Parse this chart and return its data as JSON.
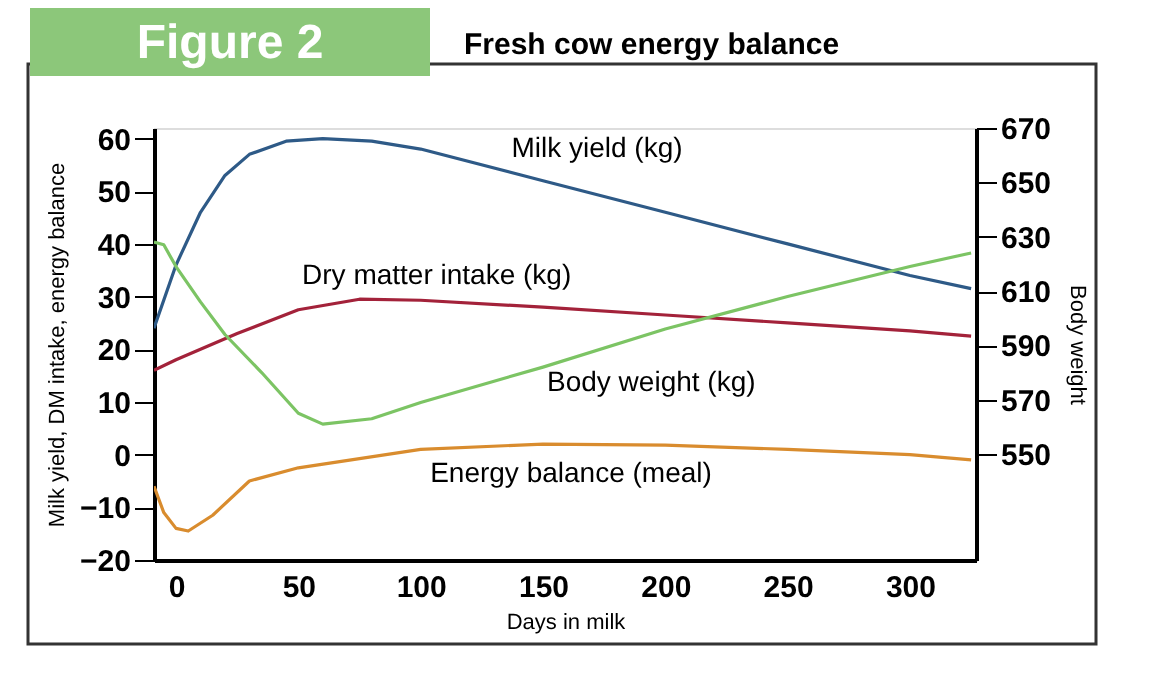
{
  "chart_data": {
    "type": "line",
    "title": "Figure 2",
    "subtitle": "Fresh cow energy balance",
    "xlabel": "Days in milk",
    "ylabel": "Milk yield, DM intake, energy balance",
    "y2label": "Body weight",
    "xlim": [
      -9,
      327
    ],
    "xticks": [
      0,
      50,
      100,
      150,
      200,
      250,
      300
    ],
    "ylim": [
      -20,
      62
    ],
    "yticks": [
      -20,
      -10,
      0,
      10,
      20,
      30,
      40,
      50,
      60
    ],
    "y2lim": [
      511,
      670
    ],
    "y2ticks": [
      550,
      570,
      590,
      610,
      630,
      650,
      670
    ],
    "grid": false,
    "line_style": "solid",
    "series": [
      {
        "name": "Milk yield (kg)",
        "color": "#2e5a87",
        "x": [
          -9,
          0,
          10,
          20,
          30,
          45,
          60,
          80,
          100,
          150,
          200,
          250,
          300,
          325
        ],
        "values": [
          24,
          36,
          46,
          53,
          57,
          59.5,
          60,
          59.5,
          58,
          52,
          46,
          40,
          34,
          31.5
        ]
      },
      {
        "name": "Dry matter intake (kg)",
        "color": "#a3223a",
        "x": [
          -9,
          0,
          25,
          50,
          75,
          100,
          150,
          200,
          250,
          300,
          325
        ],
        "values": [
          16,
          18,
          23,
          27.5,
          29.5,
          29.3,
          28,
          26.5,
          25,
          23.5,
          22.5
        ]
      },
      {
        "name": "Body weight (kg)",
        "color": "#7cc464",
        "axis": "y2",
        "x": [
          -9,
          -5,
          0,
          10,
          20,
          35,
          50,
          60,
          80,
          100,
          150,
          200,
          250,
          300,
          325
        ],
        "values": [
          628,
          627,
          619,
          606,
          594,
          580,
          565,
          561,
          563,
          569,
          582,
          596,
          608,
          619,
          624
        ]
      },
      {
        "name": "Energy balance (meal)",
        "color": "#d98c2e",
        "x": [
          -9,
          -5,
          0,
          5,
          15,
          30,
          50,
          100,
          150,
          200,
          250,
          300,
          325
        ],
        "values": [
          -6,
          -11,
          -14,
          -14.5,
          -11.5,
          -5,
          -2.5,
          1,
          2,
          1.8,
          1,
          0,
          -1
        ]
      }
    ]
  }
}
